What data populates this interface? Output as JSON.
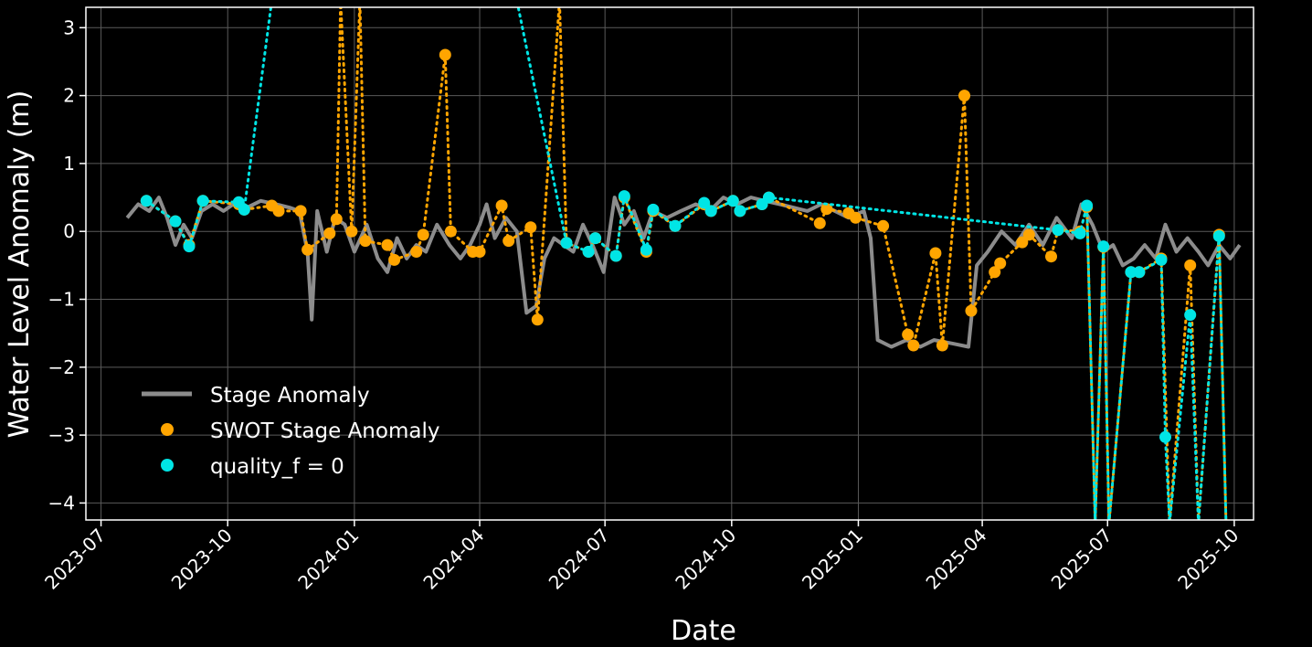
{
  "chart_data": {
    "type": "line",
    "xlabel": "Date",
    "ylabel": "Water Level Anomaly (m)",
    "x_axis": {
      "type": "date",
      "range": [
        "2023-06-20",
        "2025-10-15"
      ],
      "ticks": [
        "2023-07",
        "2023-10",
        "2024-01",
        "2024-04",
        "2024-07",
        "2024-10",
        "2025-01",
        "2025-04",
        "2025-07",
        "2025-10"
      ]
    },
    "y_axis": {
      "range": [
        -4.25,
        3.3
      ],
      "ticks": [
        3,
        2,
        1,
        0,
        -1,
        -2,
        -3,
        -4
      ]
    },
    "grid": true,
    "legend": {
      "placement": "lower-left",
      "entries": [
        {
          "label": "Stage Anomaly",
          "kind": "line",
          "color": "#8c8c8c"
        },
        {
          "label": "SWOT Stage Anomaly",
          "kind": "point",
          "color": "#ffa500"
        },
        {
          "label": "quality_f = 0",
          "kind": "point",
          "color": "#00e5e5"
        }
      ]
    },
    "colors": {
      "background": "#000000",
      "grid": "#5a5a5a",
      "axes": "#ffffff",
      "stage": "#8c8c8c",
      "swot": "#ffa500",
      "quality": "#00e5e5"
    },
    "series": [
      {
        "name": "Stage Anomaly",
        "style": "line",
        "color": "#8c8c8c",
        "points": [
          [
            "2023-07-20",
            0.2
          ],
          [
            "2023-07-28",
            0.4
          ],
          [
            "2023-08-05",
            0.3
          ],
          [
            "2023-08-12",
            0.5
          ],
          [
            "2023-08-18",
            0.2
          ],
          [
            "2023-08-24",
            -0.2
          ],
          [
            "2023-08-30",
            0.1
          ],
          [
            "2023-09-05",
            -0.1
          ],
          [
            "2023-09-12",
            0.3
          ],
          [
            "2023-09-20",
            0.4
          ],
          [
            "2023-09-28",
            0.3
          ],
          [
            "2023-10-05",
            0.4
          ],
          [
            "2023-10-15",
            0.35
          ],
          [
            "2023-10-25",
            0.45
          ],
          [
            "2023-11-05",
            0.4
          ],
          [
            "2023-11-15",
            0.35
          ],
          [
            "2023-11-22",
            0.3
          ],
          [
            "2023-11-28",
            -0.3
          ],
          [
            "2023-12-01",
            -1.3
          ],
          [
            "2023-12-05",
            0.3
          ],
          [
            "2023-12-12",
            -0.3
          ],
          [
            "2023-12-18",
            0.2
          ],
          [
            "2023-12-25",
            0.1
          ],
          [
            "2024-01-01",
            -0.3
          ],
          [
            "2024-01-10",
            0.1
          ],
          [
            "2024-01-18",
            -0.4
          ],
          [
            "2024-01-25",
            -0.6
          ],
          [
            "2024-02-01",
            -0.1
          ],
          [
            "2024-02-08",
            -0.4
          ],
          [
            "2024-02-15",
            -0.2
          ],
          [
            "2024-02-22",
            -0.3
          ],
          [
            "2024-03-01",
            0.1
          ],
          [
            "2024-03-10",
            -0.2
          ],
          [
            "2024-03-18",
            -0.4
          ],
          [
            "2024-03-25",
            -0.2
          ],
          [
            "2024-04-01",
            0.1
          ],
          [
            "2024-04-06",
            0.4
          ],
          [
            "2024-04-12",
            -0.1
          ],
          [
            "2024-04-20",
            0.2
          ],
          [
            "2024-04-28",
            0.0
          ],
          [
            "2024-05-05",
            -1.2
          ],
          [
            "2024-05-12",
            -1.1
          ],
          [
            "2024-05-18",
            -0.4
          ],
          [
            "2024-05-25",
            -0.1
          ],
          [
            "2024-06-01",
            -0.2
          ],
          [
            "2024-06-08",
            -0.3
          ],
          [
            "2024-06-15",
            0.1
          ],
          [
            "2024-06-22",
            -0.2
          ],
          [
            "2024-06-30",
            -0.6
          ],
          [
            "2024-07-08",
            0.5
          ],
          [
            "2024-07-15",
            0.1
          ],
          [
            "2024-07-22",
            0.3
          ],
          [
            "2024-07-29",
            -0.1
          ],
          [
            "2024-08-05",
            0.3
          ],
          [
            "2024-08-15",
            0.2
          ],
          [
            "2024-08-25",
            0.3
          ],
          [
            "2024-09-05",
            0.4
          ],
          [
            "2024-09-15",
            0.3
          ],
          [
            "2024-09-25",
            0.5
          ],
          [
            "2024-10-05",
            0.4
          ],
          [
            "2024-10-15",
            0.5
          ],
          [
            "2024-10-25",
            0.45
          ],
          [
            "2024-11-05",
            0.4
          ],
          [
            "2024-11-15",
            0.35
          ],
          [
            "2024-11-25",
            0.3
          ],
          [
            "2024-12-05",
            0.4
          ],
          [
            "2024-12-15",
            0.3
          ],
          [
            "2024-12-25",
            0.2
          ],
          [
            "2025-01-05",
            0.3
          ],
          [
            "2025-01-10",
            -0.1
          ],
          [
            "2025-01-15",
            -1.6
          ],
          [
            "2025-01-25",
            -1.7
          ],
          [
            "2025-02-05",
            -1.6
          ],
          [
            "2025-02-15",
            -1.7
          ],
          [
            "2025-02-25",
            -1.6
          ],
          [
            "2025-03-10",
            -1.65
          ],
          [
            "2025-03-22",
            -1.7
          ],
          [
            "2025-03-28",
            -0.5
          ],
          [
            "2025-04-05",
            -0.3
          ],
          [
            "2025-04-15",
            0.0
          ],
          [
            "2025-04-25",
            -0.2
          ],
          [
            "2025-05-05",
            0.1
          ],
          [
            "2025-05-15",
            -0.2
          ],
          [
            "2025-05-25",
            0.2
          ],
          [
            "2025-06-05",
            -0.1
          ],
          [
            "2025-06-12",
            0.4
          ],
          [
            "2025-06-20",
            0.1
          ],
          [
            "2025-06-28",
            -0.3
          ],
          [
            "2025-07-05",
            -0.2
          ],
          [
            "2025-07-12",
            -0.5
          ],
          [
            "2025-07-20",
            -0.4
          ],
          [
            "2025-07-28",
            -0.2
          ],
          [
            "2025-08-05",
            -0.4
          ],
          [
            "2025-08-12",
            0.1
          ],
          [
            "2025-08-20",
            -0.3
          ],
          [
            "2025-08-28",
            -0.1
          ],
          [
            "2025-09-05",
            -0.3
          ],
          [
            "2025-09-12",
            -0.5
          ],
          [
            "2025-09-20",
            -0.2
          ],
          [
            "2025-09-28",
            -0.4
          ],
          [
            "2025-10-05",
            -0.2
          ]
        ]
      },
      {
        "name": "SWOT Stage Anomaly",
        "style": "dotted-line-with-points",
        "color": "#ffa500",
        "points": [
          [
            "2023-08-03",
            0.45
          ],
          [
            "2023-08-24",
            0.15
          ],
          [
            "2023-09-03",
            -0.2
          ],
          [
            "2023-09-13",
            0.45
          ],
          [
            "2023-10-09",
            0.4
          ],
          [
            "2023-10-13",
            0.32
          ],
          [
            "2023-11-02",
            0.38
          ],
          [
            "2023-11-07",
            0.3
          ],
          [
            "2023-11-23",
            0.3
          ],
          [
            "2023-11-28",
            -0.27
          ],
          [
            "2023-12-14",
            -0.03
          ],
          [
            "2023-12-19",
            0.18
          ],
          [
            "2023-12-22",
            3.4
          ],
          [
            "2023-12-30",
            0.0
          ],
          [
            "2024-01-05",
            3.4
          ],
          [
            "2024-01-09",
            -0.14
          ],
          [
            "2024-01-25",
            -0.2
          ],
          [
            "2024-01-30",
            -0.42
          ],
          [
            "2024-02-15",
            -0.3
          ],
          [
            "2024-02-20",
            -0.05
          ],
          [
            "2024-03-07",
            2.6
          ],
          [
            "2024-03-11",
            0.0
          ],
          [
            "2024-03-27",
            -0.3
          ],
          [
            "2024-04-01",
            -0.3
          ],
          [
            "2024-04-17",
            0.38
          ],
          [
            "2024-04-22",
            -0.14
          ],
          [
            "2024-05-08",
            0.06
          ],
          [
            "2024-05-13",
            -1.3
          ],
          [
            "2024-05-29",
            3.4
          ],
          [
            "2024-06-03",
            -0.17
          ],
          [
            "2024-06-19",
            -0.3
          ],
          [
            "2024-06-24",
            -0.1
          ],
          [
            "2024-07-09",
            -0.36
          ],
          [
            "2024-07-15",
            0.5
          ],
          [
            "2024-07-31",
            -0.3
          ],
          [
            "2024-08-05",
            0.3
          ],
          [
            "2024-08-21",
            0.08
          ],
          [
            "2024-09-11",
            0.4
          ],
          [
            "2024-09-16",
            0.3
          ],
          [
            "2024-10-02",
            0.45
          ],
          [
            "2024-10-07",
            0.3
          ],
          [
            "2024-10-23",
            0.4
          ],
          [
            "2024-10-28",
            0.5
          ],
          [
            "2024-12-04",
            0.12
          ],
          [
            "2024-12-09",
            0.33
          ],
          [
            "2024-12-25",
            0.27
          ],
          [
            "2024-12-30",
            0.2
          ],
          [
            "2025-01-19",
            0.08
          ],
          [
            "2025-02-06",
            -1.52
          ],
          [
            "2025-02-10",
            -1.68
          ],
          [
            "2025-02-26",
            -0.32
          ],
          [
            "2025-03-03",
            -1.68
          ],
          [
            "2025-03-19",
            2.0
          ],
          [
            "2025-03-24",
            -1.17
          ],
          [
            "2025-04-10",
            -0.6
          ],
          [
            "2025-04-14",
            -0.47
          ],
          [
            "2025-04-30",
            -0.16
          ],
          [
            "2025-05-05",
            -0.05
          ],
          [
            "2025-05-21",
            -0.37
          ],
          [
            "2025-05-26",
            0.02
          ],
          [
            "2025-06-11",
            0.0
          ],
          [
            "2025-06-16",
            0.36
          ],
          [
            "2025-06-22",
            -4.3
          ],
          [
            "2025-06-28",
            -0.23
          ],
          [
            "2025-07-02",
            -4.3
          ],
          [
            "2025-07-18",
            -0.6
          ],
          [
            "2025-07-24",
            -0.6
          ],
          [
            "2025-08-09",
            -0.4
          ],
          [
            "2025-08-15",
            -4.3
          ],
          [
            "2025-08-30",
            -0.5
          ],
          [
            "2025-09-05",
            -4.3
          ],
          [
            "2025-09-20",
            -0.05
          ],
          [
            "2025-09-25",
            -4.3
          ]
        ]
      },
      {
        "name": "quality_f = 0",
        "style": "dotted-line-with-points",
        "color": "#00e5e5",
        "points": [
          [
            "2023-08-03",
            0.45
          ],
          [
            "2023-08-24",
            0.15
          ],
          [
            "2023-09-03",
            -0.22
          ],
          [
            "2023-09-13",
            0.45
          ],
          [
            "2023-10-09",
            0.43
          ],
          [
            "2023-10-13",
            0.32
          ],
          [
            "2023-11-02",
            3.4
          ],
          [
            "2024-04-28",
            3.4
          ],
          [
            "2024-06-03",
            -0.17
          ],
          [
            "2024-06-19",
            -0.3
          ],
          [
            "2024-06-24",
            -0.1
          ],
          [
            "2024-07-09",
            -0.36
          ],
          [
            "2024-07-15",
            0.52
          ],
          [
            "2024-07-31",
            -0.27
          ],
          [
            "2024-08-05",
            0.32
          ],
          [
            "2024-08-21",
            0.08
          ],
          [
            "2024-09-11",
            0.42
          ],
          [
            "2024-09-16",
            0.3
          ],
          [
            "2024-10-02",
            0.45
          ],
          [
            "2024-10-07",
            0.3
          ],
          [
            "2024-10-23",
            0.4
          ],
          [
            "2024-10-28",
            0.5
          ],
          [
            "2025-05-26",
            0.02
          ],
          [
            "2025-06-11",
            -0.03
          ],
          [
            "2025-06-16",
            0.38
          ],
          [
            "2025-06-22",
            -4.3
          ],
          [
            "2025-06-28",
            -0.22
          ],
          [
            "2025-07-02",
            -4.3
          ],
          [
            "2025-07-18",
            -0.6
          ],
          [
            "2025-07-24",
            -0.6
          ],
          [
            "2025-08-09",
            -0.42
          ],
          [
            "2025-08-12",
            -3.03
          ],
          [
            "2025-08-15",
            -4.3
          ],
          [
            "2025-08-30",
            -1.23
          ],
          [
            "2025-09-05",
            -4.3
          ],
          [
            "2025-09-20",
            -0.07
          ],
          [
            "2025-09-25",
            -4.3
          ]
        ]
      }
    ]
  }
}
